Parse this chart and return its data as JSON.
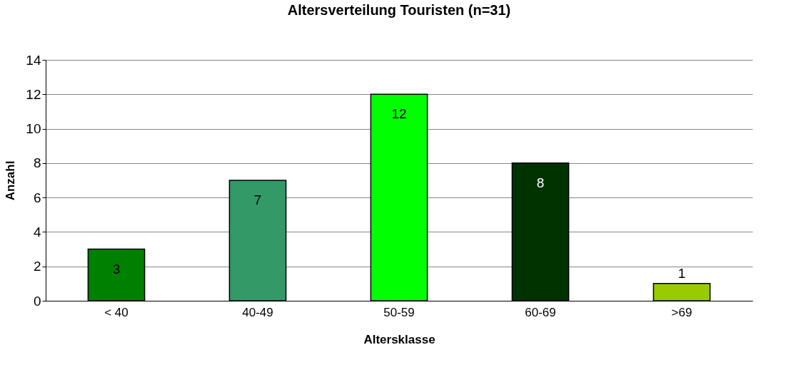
{
  "chart_data": {
    "type": "bar",
    "title": "Altersverteilung Touristen (n=31)",
    "xlabel": "Altersklasse",
    "ylabel": "Anzahl",
    "categories": [
      "< 40",
      "40-49",
      "50-59",
      "60-69",
      ">69"
    ],
    "values": [
      3,
      7,
      12,
      8,
      1
    ],
    "colors": [
      "#008000",
      "#339966",
      "#00ff00",
      "#003300",
      "#99cc00"
    ],
    "ylim": [
      0,
      14
    ],
    "yticks": [
      0,
      2,
      4,
      6,
      8,
      10,
      12,
      14
    ],
    "grid": "y",
    "data_labels": true
  }
}
